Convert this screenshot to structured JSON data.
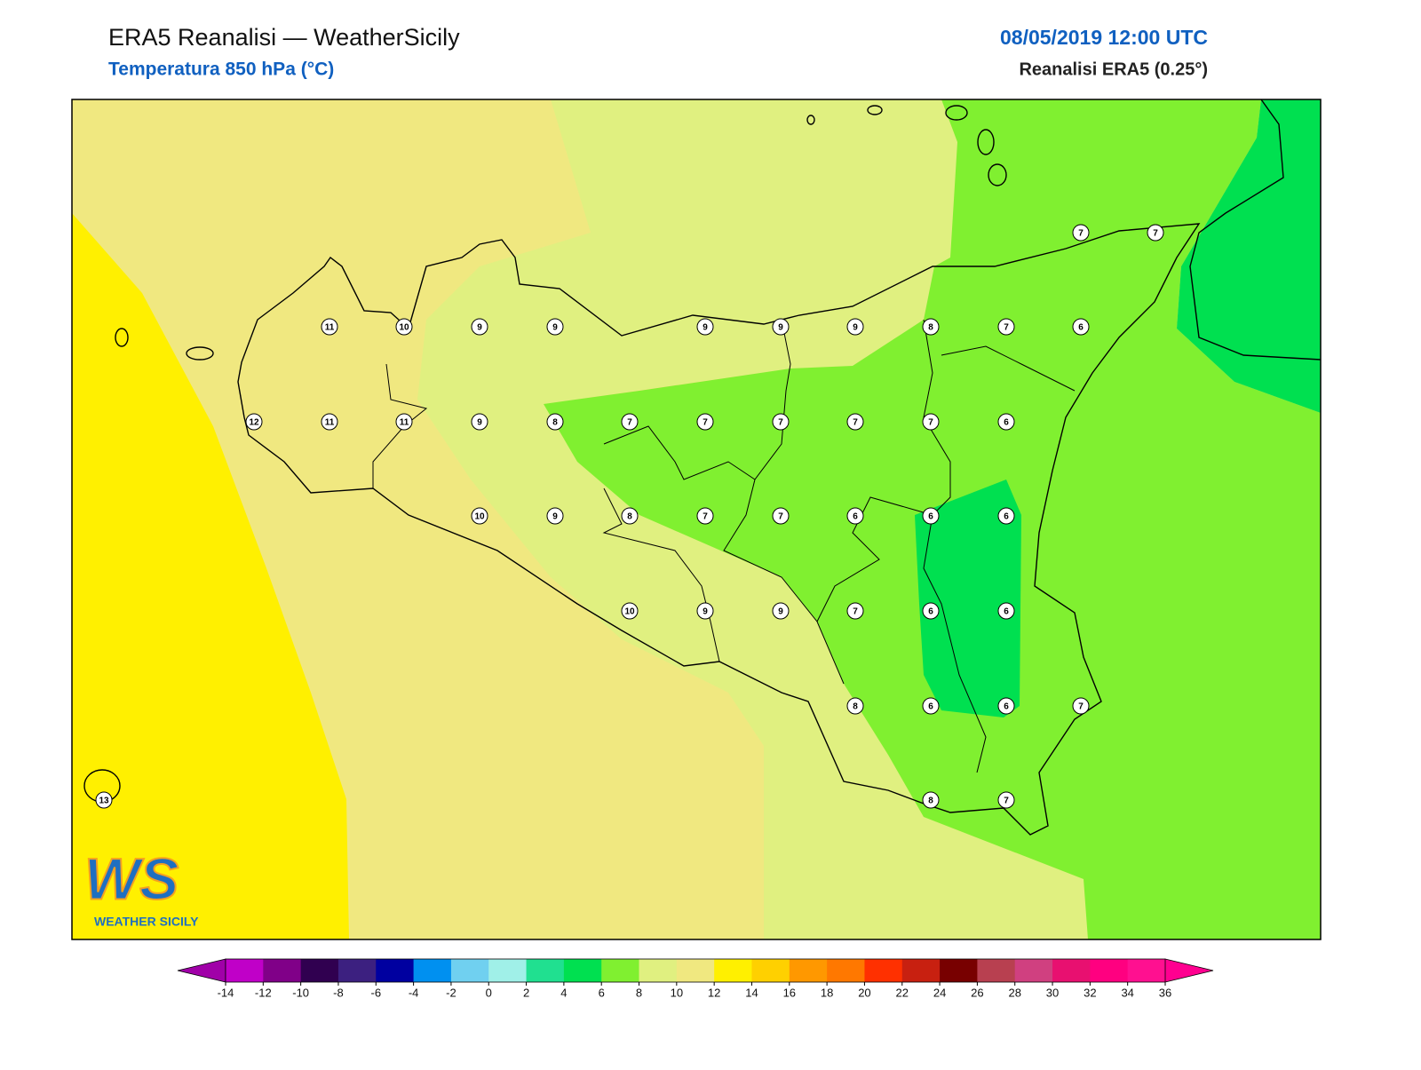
{
  "header": {
    "title": "ERA5 Reanalisi — WeatherSicily",
    "subtitle": "Temperatura 850 hPa (°C)",
    "datetime": "08/05/2019 12:00 UTC",
    "source": "Reanalisi ERA5 (0.25°)"
  },
  "stations": [
    {
      "value": 7
    },
    {
      "value": 7
    },
    {
      "value": 11
    },
    {
      "value": 10
    },
    {
      "value": 9
    },
    {
      "value": 9
    },
    {
      "value": 9
    },
    {
      "value": 9
    },
    {
      "value": 9
    },
    {
      "value": 8
    },
    {
      "value": 7
    },
    {
      "value": 6
    },
    {
      "value": 12
    },
    {
      "value": 11
    },
    {
      "value": 11
    },
    {
      "value": 9
    },
    {
      "value": 8
    },
    {
      "value": 7
    },
    {
      "value": 7
    },
    {
      "value": 7
    },
    {
      "value": 7
    },
    {
      "value": 7
    },
    {
      "value": 6
    },
    {
      "value": 10
    },
    {
      "value": 9
    },
    {
      "value": 8
    },
    {
      "value": 7
    },
    {
      "value": 7
    },
    {
      "value": 6
    },
    {
      "value": 6
    },
    {
      "value": 6
    },
    {
      "value": 10
    },
    {
      "value": 9
    },
    {
      "value": 9
    },
    {
      "value": 7
    },
    {
      "value": 6
    },
    {
      "value": 6
    },
    {
      "value": 8
    },
    {
      "value": 6
    },
    {
      "value": 6
    },
    {
      "value": 7
    },
    {
      "value": 13
    },
    {
      "value": 8
    },
    {
      "value": 7
    }
  ],
  "colorbar": {
    "ticks": [
      -14,
      -12,
      -10,
      -8,
      -6,
      -4,
      -2,
      0,
      2,
      4,
      6,
      8,
      10,
      12,
      14,
      16,
      18,
      20,
      22,
      24,
      26,
      28,
      30,
      32,
      34,
      36
    ],
    "under": "#a000a8",
    "over": "#ff0090",
    "colors": [
      "#c000c8",
      "#800088",
      "#300050",
      "#3c2080",
      "#0000a0",
      "#0090f0",
      "#70d0f0",
      "#a0f0e8",
      "#20e090",
      "#00e050",
      "#80f030",
      "#e0f080",
      "#f0e880",
      "#fff000",
      "#ffd000",
      "#ff9800",
      "#ff7800",
      "#ff3000",
      "#c82010",
      "#780000",
      "#b84050",
      "#d04080",
      "#e81070",
      "#ff0080",
      "#ff1090"
    ]
  },
  "logo": {
    "mark": "WS",
    "text": "WEATHER SICILY"
  }
}
